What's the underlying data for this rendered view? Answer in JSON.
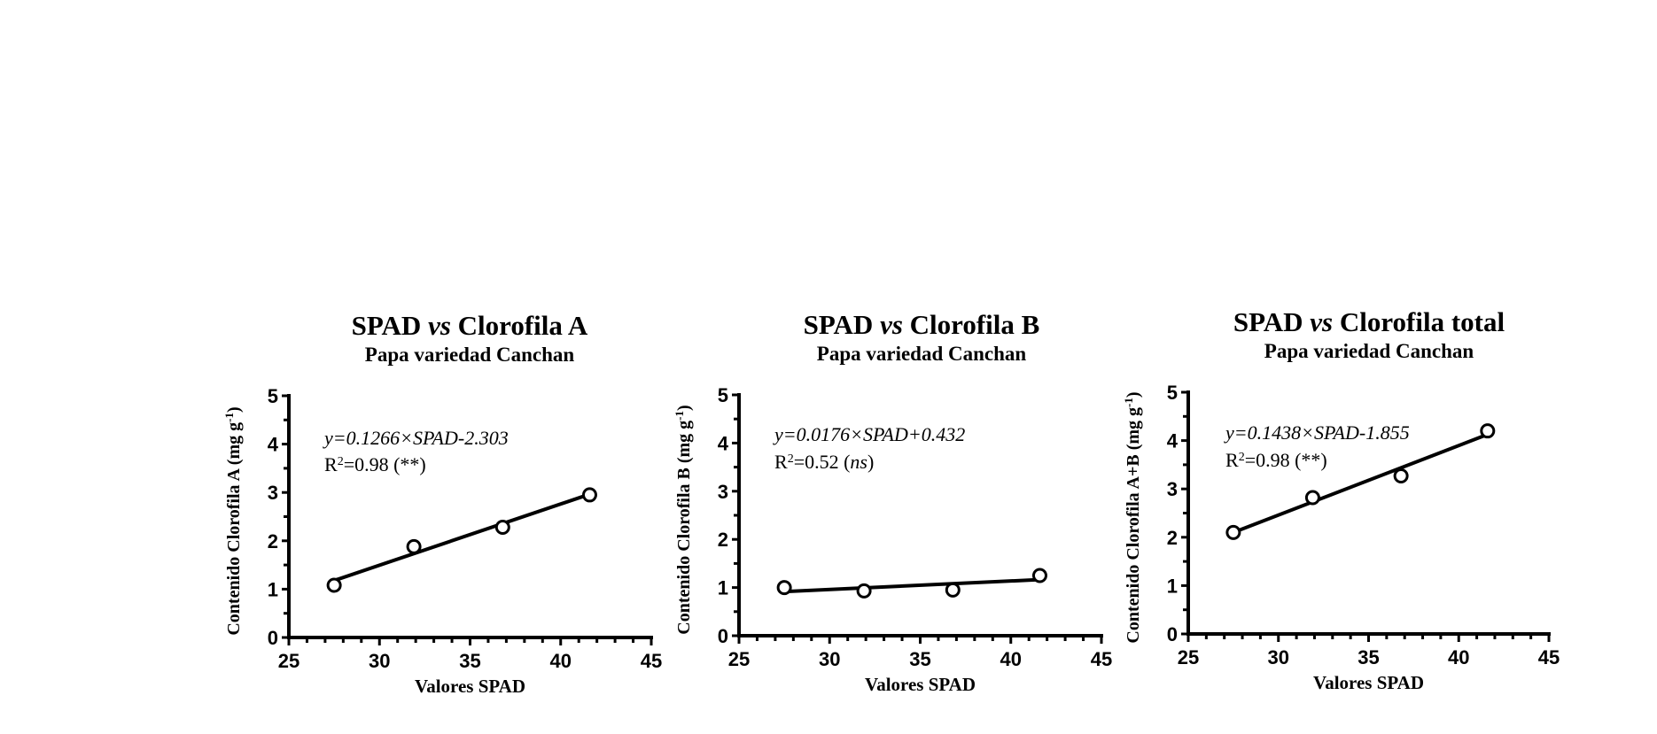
{
  "chart_data": [
    {
      "type": "scatter",
      "title": "SPAD vs Clorofila A",
      "title_parts": {
        "pre": "SPAD ",
        "italic": "vs",
        "post": " Clorofila A"
      },
      "subtitle": "Papa variedad Canchan",
      "xlabel": "Valores SPAD",
      "ylabel": "Contenido Clorofila A (mg g-1)",
      "ylabel_parts": {
        "main": "Contenido Clorofila A (mg g",
        "sup": "-1",
        "close": ")"
      },
      "xlim": [
        25,
        45
      ],
      "ylim": [
        0,
        5
      ],
      "xticks": [
        25,
        30,
        35,
        40,
        45
      ],
      "yticks": [
        0,
        1,
        2,
        3,
        4,
        5
      ],
      "grid": false,
      "points": {
        "x": [
          27.5,
          31.9,
          36.8,
          41.6
        ],
        "y": [
          1.08,
          1.88,
          2.28,
          2.95
        ]
      },
      "regression": {
        "slope": 0.1266,
        "intercept": -2.303,
        "x_range": [
          27.5,
          41.6
        ]
      },
      "annotation": {
        "equation": "y=0.1266×SPAD-2.303",
        "r2_prefix": "R",
        "r2_sup": "2",
        "r2_value": "=0.98 (",
        "r2_sig": "**",
        "r2_sig_italic": false,
        "r2_close": ")"
      }
    },
    {
      "type": "scatter",
      "title": "SPAD vs Clorofila B",
      "title_parts": {
        "pre": "SPAD ",
        "italic": "vs",
        "post": " Clorofila B"
      },
      "subtitle": "Papa variedad Canchan",
      "xlabel": "Valores SPAD",
      "ylabel": "Contenido Clorofila B (mg g-1)",
      "ylabel_parts": {
        "main": "Contenido Clorofila B (mg g",
        "sup": "-1",
        "close": ")"
      },
      "xlim": [
        25,
        45
      ],
      "ylim": [
        0,
        5
      ],
      "xticks": [
        25,
        30,
        35,
        40,
        45
      ],
      "yticks": [
        0,
        1,
        2,
        3,
        4,
        5
      ],
      "grid": false,
      "points": {
        "x": [
          27.5,
          31.9,
          36.8,
          41.6
        ],
        "y": [
          1.0,
          0.93,
          0.95,
          1.25
        ]
      },
      "regression": {
        "slope": 0.0176,
        "intercept": 0.432,
        "x_range": [
          27.5,
          41.6
        ]
      },
      "annotation": {
        "equation": "y=0.0176×SPAD+0.432",
        "r2_prefix": "R",
        "r2_sup": "2",
        "r2_value": "=0.52 (",
        "r2_sig": "ns",
        "r2_sig_italic": true,
        "r2_close": ")"
      }
    },
    {
      "type": "scatter",
      "title": "SPAD vs Clorofila total",
      "title_parts": {
        "pre": "SPAD ",
        "italic": "vs",
        "post": " Clorofila total"
      },
      "subtitle": "Papa variedad Canchan",
      "xlabel": "Valores SPAD",
      "ylabel": "Contenido Clorofila A+B (mg g-1)",
      "ylabel_parts": {
        "main": "Contenido Clorofila A+B (mg g",
        "sup": "-1",
        "close": ")"
      },
      "xlim": [
        25,
        45
      ],
      "ylim": [
        0,
        5
      ],
      "xticks": [
        25,
        30,
        35,
        40,
        45
      ],
      "yticks": [
        0,
        1,
        2,
        3,
        4,
        5
      ],
      "grid": false,
      "points": {
        "x": [
          27.5,
          31.9,
          36.8,
          41.6
        ],
        "y": [
          2.1,
          2.82,
          3.27,
          4.2
        ]
      },
      "regression": {
        "slope": 0.1438,
        "intercept": -1.855,
        "x_range": [
          27.5,
          41.6
        ]
      },
      "annotation": {
        "equation": "y=0.1438×SPAD-1.855",
        "r2_prefix": "R",
        "r2_sup": "2",
        "r2_value": "=0.98 (",
        "r2_sig": "**",
        "r2_sig_italic": false,
        "r2_close": ")"
      }
    }
  ]
}
